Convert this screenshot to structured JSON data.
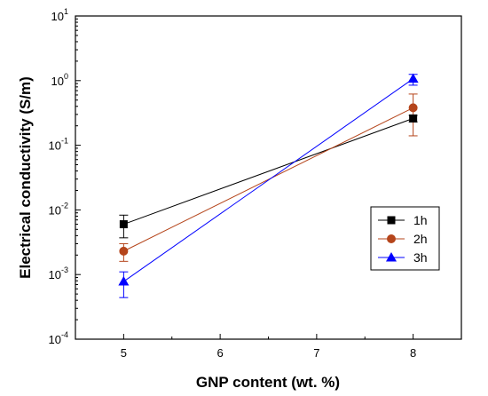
{
  "chart_data": {
    "type": "line",
    "title": "",
    "xlabel": "GNP content (wt. %)",
    "ylabel": "Electrical conductivity (S/m)",
    "x_ticks": [
      5,
      6,
      7,
      8
    ],
    "xlim": [
      4.5,
      8.5
    ],
    "y_scale": "log",
    "ylim": [
      0.0001,
      10
    ],
    "y_ticks": [
      {
        "base": "10",
        "exp": "-4"
      },
      {
        "base": "10",
        "exp": "-3"
      },
      {
        "base": "10",
        "exp": "-2"
      },
      {
        "base": "10",
        "exp": "-1"
      },
      {
        "base": "10",
        "exp": "0"
      },
      {
        "base": "10",
        "exp": "1"
      }
    ],
    "grid": false,
    "legend_position": "center-right",
    "x": [
      5,
      8
    ],
    "series": [
      {
        "name": "1h",
        "color": "#000000",
        "marker": "square",
        "values": [
          0.006,
          0.26
        ],
        "err_low": [
          0.0037,
          0.23
        ],
        "err_high": [
          0.0083,
          0.29
        ]
      },
      {
        "name": "2h",
        "color": "#b5451b",
        "marker": "circle",
        "values": [
          0.0023,
          0.38
        ],
        "err_low": [
          0.0016,
          0.14
        ],
        "err_high": [
          0.003,
          0.62
        ]
      },
      {
        "name": "3h",
        "color": "#0000ff",
        "marker": "triangle",
        "values": [
          0.00078,
          1.07
        ],
        "err_low": [
          0.00044,
          0.85
        ],
        "err_high": [
          0.0011,
          1.25
        ]
      }
    ]
  }
}
